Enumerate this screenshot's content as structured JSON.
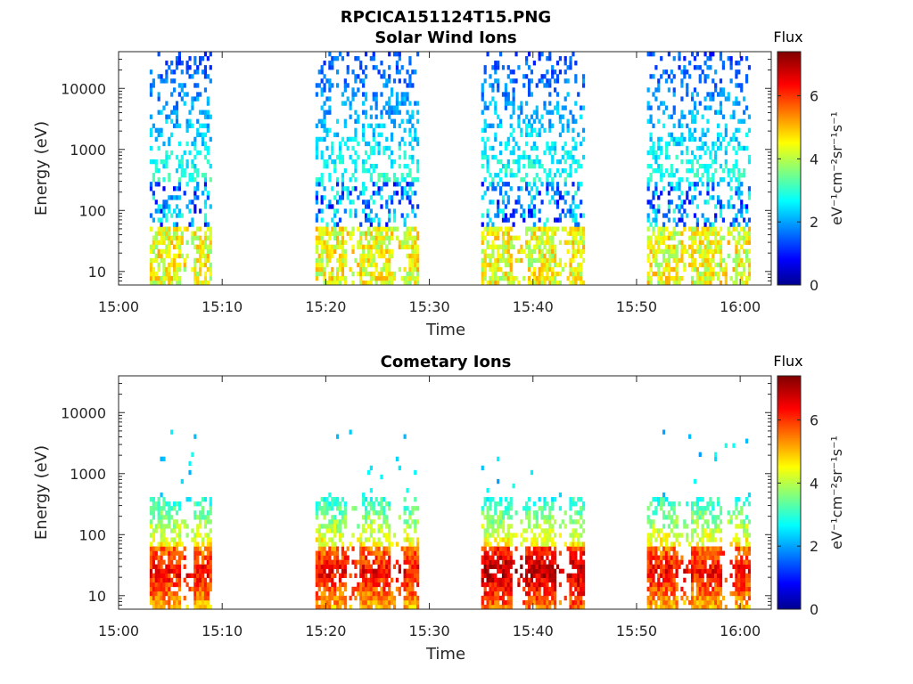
{
  "figure_title": "RPCICA151124T15.PNG",
  "chart_data": [
    {
      "type": "heatmap",
      "title": "Solar Wind Ions",
      "xlabel": "Time",
      "ylabel": "Energy (eV)",
      "x_ticks": [
        "15:00",
        "15:10",
        "15:20",
        "15:30",
        "15:40",
        "15:50",
        "16:00"
      ],
      "xlim": [
        "15:00",
        "16:03"
      ],
      "y_ticks": [
        10,
        100,
        1000,
        10000
      ],
      "ylim": [
        6,
        40000
      ],
      "y_scale": "log",
      "colorbar": {
        "title": "Flux",
        "label": "eV-1cm-2sr-1s-1",
        "ticks": [
          0,
          2,
          4,
          6
        ],
        "range": [
          0,
          7.4
        ],
        "colormap": "jet"
      },
      "bursts": [
        {
          "start": "15:03",
          "end": "15:09",
          "low_energy_flux": 4.5,
          "high_energy_flux": 2.0
        },
        {
          "start": "15:19",
          "end": "15:29",
          "low_energy_flux": 4.5,
          "high_energy_flux": 2.0
        },
        {
          "start": "15:35",
          "end": "15:45",
          "low_energy_flux": 4.5,
          "high_energy_flux": 2.0
        },
        {
          "start": "15:51",
          "end": "16:01",
          "low_energy_flux": 4.5,
          "high_energy_flux": 2.0
        }
      ]
    },
    {
      "type": "heatmap",
      "title": "Cometary Ions",
      "xlabel": "Time",
      "ylabel": "Energy (eV)",
      "x_ticks": [
        "15:00",
        "15:10",
        "15:20",
        "15:30",
        "15:40",
        "15:50",
        "16:00"
      ],
      "xlim": [
        "15:00",
        "16:03"
      ],
      "y_ticks": [
        10,
        100,
        1000,
        10000
      ],
      "ylim": [
        6,
        40000
      ],
      "y_scale": "log",
      "colorbar": {
        "title": "Flux",
        "label": "eV-1cm-2sr-1s-1",
        "ticks": [
          0,
          2,
          4,
          6
        ],
        "range": [
          0,
          7.4
        ],
        "colormap": "jet"
      },
      "bursts": [
        {
          "start": "15:03",
          "end": "15:09",
          "peak_energy": 25,
          "peak_flux": 6.5
        },
        {
          "start": "15:19",
          "end": "15:29",
          "peak_energy": 25,
          "peak_flux": 6.5
        },
        {
          "start": "15:35",
          "end": "15:45",
          "peak_energy": 25,
          "peak_flux": 7.0
        },
        {
          "start": "15:51",
          "end": "16:01",
          "peak_energy": 25,
          "peak_flux": 6.5
        }
      ]
    }
  ]
}
